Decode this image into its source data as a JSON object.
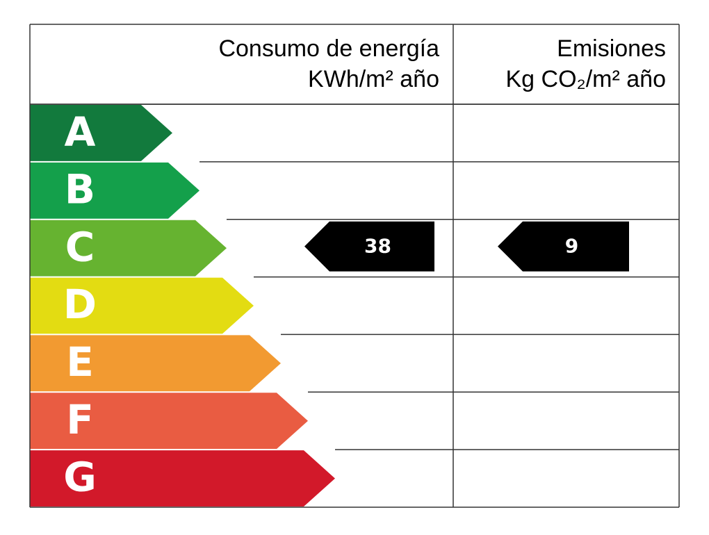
{
  "header": {
    "consumption_title": "Consumo de energía",
    "consumption_unit": "KWh/m² año",
    "emissions_title": "Emisiones",
    "emissions_unit": "Kg CO₂/m² año"
  },
  "rows": [
    {
      "letter": "A",
      "color": "#127a3d",
      "consumption": null,
      "emissions": null
    },
    {
      "letter": "B",
      "color": "#14a04b",
      "consumption": null,
      "emissions": null
    },
    {
      "letter": "C",
      "color": "#66b330",
      "consumption": 38,
      "emissions": 9
    },
    {
      "letter": "D",
      "color": "#e3dc12",
      "consumption": null,
      "emissions": null
    },
    {
      "letter": "E",
      "color": "#f29a31",
      "consumption": null,
      "emissions": null
    },
    {
      "letter": "F",
      "color": "#e95c42",
      "consumption": null,
      "emissions": null
    },
    {
      "letter": "G",
      "color": "#d2192a",
      "consumption": null,
      "emissions": null
    }
  ]
}
